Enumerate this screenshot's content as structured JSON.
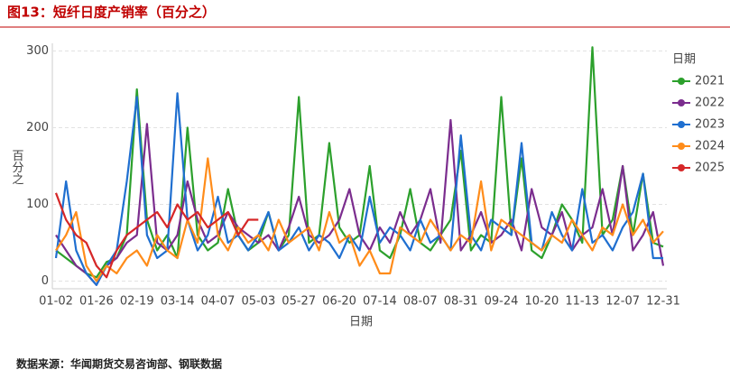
{
  "title": "图13：短纤日度产销率（百分之）",
  "source": "数据来源：华闻期货交易咨询部、钢联数据",
  "chart_data": {
    "type": "line",
    "x_label": "日期",
    "y_label": "百分之",
    "legend_title": "日期",
    "legend": "right",
    "grid": true,
    "categories": [
      "01-02",
      null,
      null,
      null,
      "01-26",
      null,
      null,
      null,
      "02-19",
      null,
      null,
      null,
      "03-14",
      null,
      null,
      null,
      "04-07",
      null,
      null,
      null,
      "05-03",
      null,
      null,
      null,
      "05-27",
      null,
      null,
      null,
      "06-20",
      null,
      null,
      null,
      "07-14",
      null,
      null,
      null,
      "08-07",
      null,
      null,
      null,
      "08-31",
      null,
      null,
      null,
      "09-24",
      null,
      null,
      null,
      "10-20",
      null,
      null,
      null,
      "11-13",
      null,
      null,
      null,
      "12-07",
      null,
      null,
      null,
      "12-31"
    ],
    "ylim": [
      -10,
      310
    ],
    "yticks": [
      0,
      100,
      200,
      300
    ],
    "series": [
      {
        "name": "2021",
        "color": "#2ca02c",
        "values": [
          40,
          30,
          20,
          10,
          5,
          25,
          30,
          60,
          250,
          80,
          40,
          60,
          30,
          200,
          60,
          40,
          50,
          120,
          60,
          40,
          50,
          90,
          40,
          60,
          240,
          50,
          60,
          180,
          70,
          50,
          60,
          150,
          40,
          30,
          60,
          120,
          50,
          40,
          60,
          80,
          170,
          40,
          60,
          50,
          240,
          60,
          160,
          40,
          30,
          60,
          100,
          80,
          50,
          305,
          60,
          80,
          150,
          60,
          140,
          50,
          45
        ]
      },
      {
        "name": "2022",
        "color": "#7b2d8e",
        "values": [
          60,
          40,
          20,
          10,
          -5,
          20,
          30,
          50,
          60,
          205,
          50,
          40,
          60,
          130,
          80,
          50,
          60,
          90,
          70,
          60,
          50,
          60,
          40,
          70,
          110,
          60,
          50,
          60,
          80,
          120,
          60,
          40,
          70,
          50,
          90,
          60,
          80,
          120,
          50,
          210,
          40,
          60,
          90,
          50,
          60,
          80,
          40,
          120,
          70,
          60,
          90,
          40,
          60,
          70,
          120,
          60,
          150,
          40,
          60,
          90,
          20
        ]
      },
      {
        "name": "2023",
        "color": "#1f6fd0",
        "values": [
          30,
          130,
          40,
          10,
          -5,
          20,
          40,
          130,
          240,
          60,
          30,
          40,
          245,
          80,
          40,
          60,
          110,
          50,
          60,
          40,
          60,
          90,
          40,
          50,
          70,
          40,
          60,
          50,
          30,
          60,
          40,
          110,
          50,
          70,
          60,
          40,
          80,
          50,
          60,
          40,
          190,
          60,
          40,
          80,
          70,
          60,
          180,
          50,
          40,
          90,
          60,
          40,
          120,
          50,
          60,
          40,
          70,
          90,
          140,
          30,
          30
        ]
      },
      {
        "name": "2024",
        "color": "#ff8c1a",
        "values": [
          40,
          60,
          90,
          20,
          0,
          20,
          10,
          30,
          40,
          20,
          60,
          40,
          30,
          80,
          50,
          160,
          60,
          40,
          70,
          50,
          60,
          40,
          80,
          50,
          60,
          70,
          40,
          90,
          50,
          60,
          20,
          40,
          10,
          10,
          70,
          60,
          50,
          80,
          60,
          40,
          60,
          50,
          130,
          40,
          80,
          70,
          60,
          50,
          40,
          60,
          50,
          80,
          60,
          40,
          70,
          60,
          100,
          60,
          80,
          50,
          65
        ]
      },
      {
        "name": "2025",
        "color": "#d62728",
        "values": [
          115,
          80,
          60,
          50,
          20,
          5,
          40,
          60,
          70,
          80,
          90,
          70,
          100,
          80,
          90,
          70,
          80,
          90,
          60,
          80,
          80,
          null,
          null,
          null,
          null,
          null,
          null,
          null,
          null,
          null,
          null,
          null,
          null,
          null,
          null,
          null,
          null,
          null,
          null,
          null,
          null,
          null,
          null,
          null,
          null,
          null,
          null,
          null,
          null,
          null,
          null,
          null,
          null,
          null,
          null,
          null,
          null,
          null,
          null,
          null,
          null
        ]
      }
    ]
  }
}
